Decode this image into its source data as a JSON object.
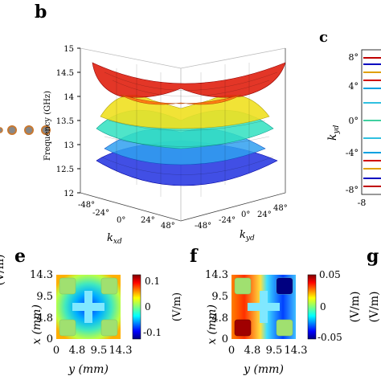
{
  "panels": {
    "b": "b",
    "c": "c",
    "e": "e",
    "f": "f",
    "g": "g"
  },
  "panel_b": {
    "zlabel": "Frequency (GHz)",
    "zticks": [
      "15",
      "14.5",
      "14",
      "13.5",
      "13",
      "12.5",
      "12"
    ],
    "kx_ticks": [
      "-48°",
      "-24°",
      "0°",
      "24°",
      "48°"
    ],
    "ky_ticks": [
      "-48°",
      "-24°",
      "0°",
      "24°",
      "48°"
    ],
    "kx_label_main": "k",
    "kx_label_sub": "xd",
    "kx_label_tail": "d",
    "ky_label_main": "k",
    "ky_label_sub": "yd",
    "ky_label_tail": "d",
    "colors": {
      "red": "#cc0000",
      "yellow": "#e8e020",
      "cyan": "#20d0e0",
      "blue": "#1010c0"
    }
  },
  "panel_c": {
    "ylabel_main": "k",
    "ylabel_sub": "yd",
    "ylabel_tail": "d",
    "yticks": [
      "8°",
      "4°",
      "0°",
      "-4°",
      "-8°"
    ],
    "xtick_partial": "-8"
  },
  "panel_e": {
    "xlabel": "y (mm)",
    "ylabel": "x (mm)",
    "ticks": [
      "0",
      "4.8",
      "9.5",
      "14.3"
    ],
    "ylabel_partial": "(V/m)",
    "colorbar_ticks": [
      "0.1",
      "0",
      "-0.1"
    ],
    "colorbar_unit": "(V/m)"
  },
  "panel_f": {
    "xlabel": "y (mm)",
    "ylabel": "x (mm)",
    "ticks": [
      "0",
      "4.8",
      "9.5",
      "14.3"
    ],
    "ylabel_partial": "(V/m)",
    "colorbar_ticks": [
      "0.05",
      "0",
      "-0.05"
    ],
    "colorbar_unit": "(V/m)"
  },
  "panel_g": {
    "ylabel_partial": "(V/m)"
  }
}
